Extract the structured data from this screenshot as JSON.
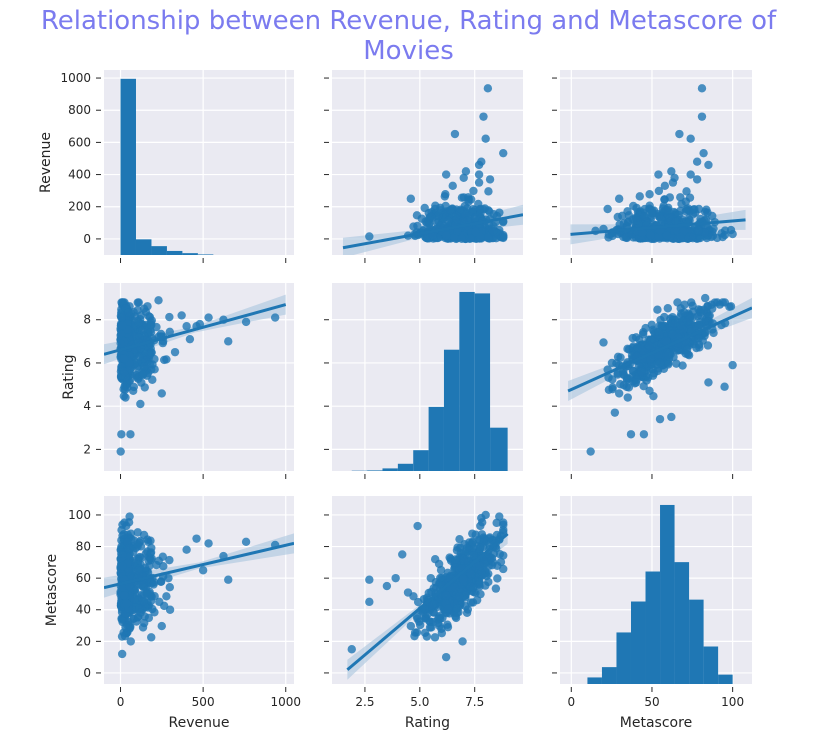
{
  "title": "Relationship between Revenue, Rating and Metascore of Movies",
  "colors": {
    "title": "#7b7bef",
    "panel_bg": "#eaeaf2",
    "grid": "#ffffff",
    "mark": "#1f77b4",
    "ci_band": "#a9c4de"
  },
  "chart_data": {
    "type": "pairplot",
    "grid": true,
    "variables": [
      "Revenue",
      "Rating",
      "Metascore"
    ],
    "axis_labels": {
      "x": [
        "Revenue",
        "Rating",
        "Metascore"
      ],
      "y": [
        "Revenue",
        "Rating",
        "Metascore"
      ]
    },
    "ranges": {
      "Revenue": [
        -100,
        1050
      ],
      "Rating": [
        1.0,
        9.7
      ],
      "Metascore": [
        -7,
        112
      ]
    },
    "ticks": {
      "Revenue_y": [
        0,
        200,
        400,
        600,
        800,
        1000
      ],
      "Revenue_x": [
        0,
        500,
        1000
      ],
      "Rating_y": [
        2,
        4,
        6,
        8
      ],
      "Rating_x": [
        2.5,
        5.0,
        7.5
      ],
      "Metascore_y": [
        0,
        20,
        40,
        60,
        80,
        100
      ],
      "Metascore_x": [
        0,
        50,
        100
      ]
    },
    "tick_labels": {
      "Revenue_y": [
        "0",
        "200",
        "400",
        "600",
        "800",
        "1000"
      ],
      "Revenue_x": [
        "0",
        "500",
        "1000"
      ],
      "Rating_y": [
        "2",
        "4",
        "6",
        "8"
      ],
      "Rating_x": [
        "2.5",
        "5.0",
        "7.5"
      ],
      "Metascore_y": [
        "0",
        "20",
        "40",
        "60",
        "80",
        "100"
      ],
      "Metascore_x": [
        "0",
        "50",
        "100"
      ]
    },
    "histograms": {
      "Revenue": {
        "bin_edges": [
          0,
          93.6,
          187.3,
          280.9,
          374.5,
          468.2,
          561.8
        ],
        "heights": [
          955,
          85,
          48,
          22,
          10,
          3
        ]
      },
      "Rating": {
        "bin_edges": [
          1.9,
          2.6,
          3.3,
          4.0,
          4.7,
          5.4,
          6.1,
          6.8,
          7.5,
          8.2,
          9.0
        ],
        "heights": [
          1,
          2,
          9,
          25,
          72,
          222,
          420,
          620,
          615,
          150
        ]
      },
      "Metascore": {
        "bin_edges": [
          10,
          19,
          28,
          37,
          46,
          55,
          64,
          73,
          82,
          91,
          100
        ],
        "heights": [
          7,
          18,
          55,
          88,
          120,
          191,
          130,
          90,
          40,
          10
        ]
      }
    },
    "regressions": {
      "Revenue_vs_Rating": {
        "x": [
          1.5,
          9.7
        ],
        "y": [
          -55,
          150
        ]
      },
      "Revenue_vs_Metascore": {
        "x": [
          -0.5,
          108
        ],
        "y": [
          28,
          118
        ]
      },
      "Rating_vs_Revenue": {
        "x": [
          -100,
          1000
        ],
        "y": [
          6.4,
          8.7
        ]
      },
      "Rating_vs_Metascore": {
        "x": [
          -2,
          112
        ],
        "y": [
          4.7,
          8.55
        ]
      },
      "Metascore_vs_Revenue": {
        "x": [
          -100,
          1050
        ],
        "y": [
          54,
          82
        ]
      },
      "Metascore_vs_Rating": {
        "x": [
          1.7,
          9.0
        ],
        "y": [
          2,
          88
        ]
      }
    },
    "outliers": {
      "Revenue_vs_Rating": [
        [
          8.1,
          936
        ],
        [
          7.9,
          760
        ],
        [
          6.6,
          652
        ],
        [
          8.0,
          623
        ],
        [
          8.8,
          533
        ],
        [
          7.8,
          480
        ],
        [
          7.7,
          460
        ],
        [
          7.1,
          420
        ],
        [
          7.7,
          400
        ],
        [
          6.2,
          400
        ],
        [
          7.0,
          380
        ],
        [
          8.2,
          370
        ],
        [
          7.7,
          350
        ],
        [
          6.5,
          330
        ],
        [
          2.7,
          15
        ]
      ],
      "Revenue_vs_Metascore": [
        [
          81,
          936
        ],
        [
          81,
          760
        ],
        [
          67,
          652
        ],
        [
          74,
          623
        ],
        [
          82,
          533
        ],
        [
          78,
          480
        ],
        [
          85,
          460
        ],
        [
          62,
          420
        ],
        [
          74,
          400
        ],
        [
          54,
          400
        ],
        [
          64,
          380
        ],
        [
          78,
          370
        ],
        [
          63,
          350
        ],
        [
          58,
          330
        ],
        [
          15,
          50
        ],
        [
          30,
          90
        ],
        [
          100,
          30
        ]
      ],
      "Rating_vs_Revenue": [
        [
          936,
          8.1
        ],
        [
          760,
          7.9
        ],
        [
          652,
          7.0
        ],
        [
          623,
          8.0
        ],
        [
          533,
          8.1
        ],
        [
          480,
          7.8
        ],
        [
          460,
          7.7
        ],
        [
          420,
          7.1
        ],
        [
          400,
          7.7
        ],
        [
          330,
          6.5
        ],
        [
          230,
          8.9
        ],
        [
          370,
          8.2
        ],
        [
          1,
          1.9
        ],
        [
          5,
          2.7
        ],
        [
          60,
          2.7
        ],
        [
          120,
          4.1
        ],
        [
          30,
          4.4
        ]
      ],
      "Rating_vs_Metascore": [
        [
          12,
          1.9
        ],
        [
          37,
          2.7
        ],
        [
          45,
          2.7
        ],
        [
          55,
          3.4
        ],
        [
          62,
          3.5
        ],
        [
          27,
          3.7
        ],
        [
          35,
          4.4
        ],
        [
          85,
          5.1
        ],
        [
          95,
          4.9
        ],
        [
          100,
          5.9
        ],
        [
          83,
          9.0
        ],
        [
          92,
          8.7
        ],
        [
          98,
          8.6
        ]
      ],
      "Metascore_vs_Revenue": [
        [
          936,
          81
        ],
        [
          760,
          83
        ],
        [
          652,
          59
        ],
        [
          623,
          74
        ],
        [
          533,
          82
        ],
        [
          460,
          85
        ],
        [
          400,
          78
        ],
        [
          290,
          60
        ],
        [
          200,
          56
        ],
        [
          235,
          45
        ],
        [
          300,
          40
        ],
        [
          10,
          12
        ],
        [
          500,
          65
        ]
      ],
      "Metascore_vs_Rating": [
        [
          1.9,
          15
        ],
        [
          2.7,
          59
        ],
        [
          2.7,
          45
        ],
        [
          3.5,
          55
        ],
        [
          3.9,
          60
        ],
        [
          4.2,
          75
        ],
        [
          4.9,
          93
        ],
        [
          5.5,
          60
        ],
        [
          5.7,
          72
        ],
        [
          6.2,
          10
        ],
        [
          8.0,
          100
        ],
        [
          7.8,
          98
        ],
        [
          8.5,
          95
        ]
      ]
    }
  }
}
